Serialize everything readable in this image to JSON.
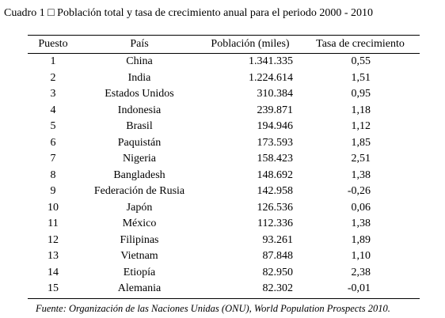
{
  "title": "Cuadro 1 □ Población total y tasa de crecimiento anual para el periodo 2000 - 2010",
  "table": {
    "headers": [
      "Puesto",
      "País",
      "Población (miles)",
      "Tasa de crecimiento"
    ],
    "rows": [
      [
        "1",
        "China",
        "1.341.335",
        "0,55"
      ],
      [
        "2",
        "India",
        "1.224.614",
        "1,51"
      ],
      [
        "3",
        "Estados Unidos",
        "310.384",
        "0,95"
      ],
      [
        "4",
        "Indonesia",
        "239.871",
        "1,18"
      ],
      [
        "5",
        "Brasil",
        "194.946",
        "1,12"
      ],
      [
        "6",
        "Paquistán",
        "173.593",
        "1,85"
      ],
      [
        "7",
        "Nigeria",
        "158.423",
        "2,51"
      ],
      [
        "8",
        "Bangladesh",
        "148.692",
        "1,38"
      ],
      [
        "9",
        "Federación de Rusia",
        "142.958",
        "-0,26"
      ],
      [
        "10",
        "Japón",
        "126.536",
        "0,06"
      ],
      [
        "11",
        "México",
        "112.336",
        "1,38"
      ],
      [
        "12",
        "Filipinas",
        "93.261",
        "1,89"
      ],
      [
        "13",
        "Vietnam",
        "87.848",
        "1,10"
      ],
      [
        "14",
        "Etiopía",
        "82.950",
        "2,38"
      ],
      [
        "15",
        "Alemania",
        "82.302",
        "-0,01"
      ]
    ]
  },
  "footnote": "Fuente: Organización de las Naciones Unidas (ONU), World Population Prospects 2010."
}
